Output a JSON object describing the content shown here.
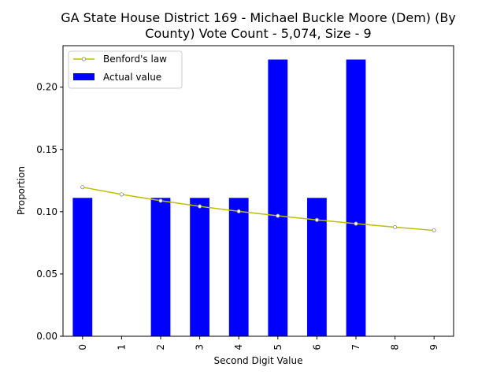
{
  "chart_data": {
    "type": "bar",
    "title_lines": [
      "GA State House District 169 - Michael Buckle Moore (Dem) (By",
      "County) Vote Count - 5,074, Size - 9"
    ],
    "xlabel": "Second Digit Value",
    "ylabel": "Proportion",
    "categories": [
      "0",
      "1",
      "2",
      "3",
      "4",
      "5",
      "6",
      "7",
      "8",
      "9"
    ],
    "ylim": [
      0,
      0.2333
    ],
    "yticks": [
      "0.00",
      "0.05",
      "0.10",
      "0.15",
      "0.20"
    ],
    "ytick_values": [
      0,
      0.05,
      0.1,
      0.15,
      0.2
    ],
    "legend_position": "top-left",
    "series": [
      {
        "name": "Benford's law",
        "kind": "line",
        "color": "#bfbf00",
        "values": [
          0.1197,
          0.1139,
          0.1088,
          0.1043,
          0.1003,
          0.0967,
          0.0934,
          0.0904,
          0.0876,
          0.085
        ]
      },
      {
        "name": "Actual value",
        "kind": "bar",
        "color": "#0000ff",
        "values": [
          0.1111,
          0.0,
          0.1111,
          0.1111,
          0.1111,
          0.2222,
          0.1111,
          0.2222,
          0.0,
          0.0
        ]
      }
    ]
  }
}
